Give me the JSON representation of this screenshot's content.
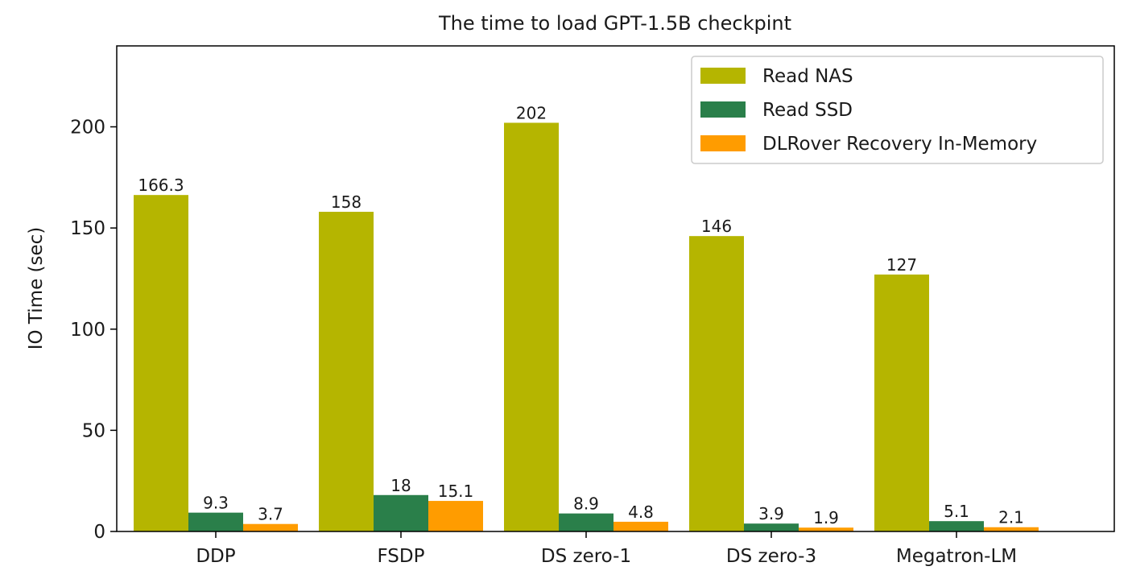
{
  "chart_data": {
    "type": "bar",
    "title": "The time to load GPT-1.5B checkpint",
    "xlabel": "",
    "ylabel": "IO Time (sec)",
    "ylim": [
      0,
      240
    ],
    "yticks": [
      0,
      50,
      100,
      150,
      200
    ],
    "categories": [
      "DDP",
      "FSDP",
      "DS zero-1",
      "DS zero-3",
      "Megatron-LM"
    ],
    "series": [
      {
        "name": "Read NAS",
        "color": "#b5b500",
        "values": [
          166.3,
          158,
          202,
          146,
          127
        ],
        "labels": [
          "166.3",
          "158",
          "202",
          "146",
          "127"
        ]
      },
      {
        "name": "Read SSD",
        "color": "#2a7f4a",
        "values": [
          9.3,
          18,
          8.9,
          3.9,
          5.1
        ],
        "labels": [
          "9.3",
          "18",
          "8.9",
          "3.9",
          "5.1"
        ]
      },
      {
        "name": "DLRover Recovery In-Memory",
        "color": "#ff9c00",
        "values": [
          3.7,
          15.1,
          4.8,
          1.9,
          2.1
        ],
        "labels": [
          "3.7",
          "15.1",
          "4.8",
          "1.9",
          "2.1"
        ]
      }
    ],
    "legend_position": "top-right",
    "grid": false
  }
}
